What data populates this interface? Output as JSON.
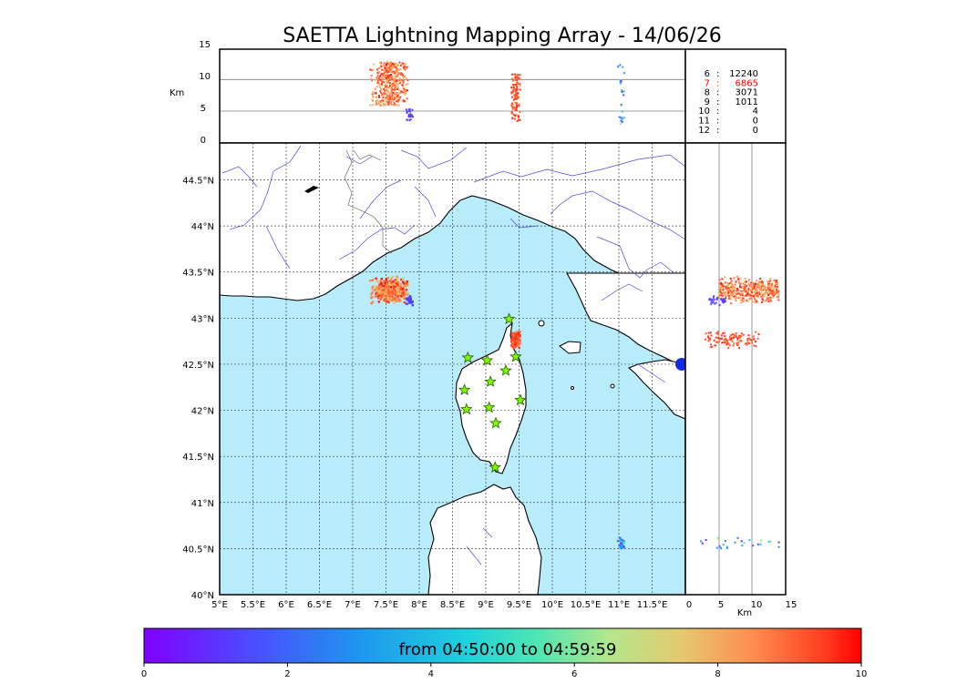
{
  "chart_data": {
    "type": "scatter",
    "title": "SAETTA Lightning Mapping Array - 14/06/26",
    "colors": {
      "land": "#ffffff",
      "sea": "#b8ecfb",
      "rivers": "#3a3aff",
      "coast": "#000000",
      "stations": "#7cfc00"
    },
    "map": {
      "lon_range": [
        5,
        12
      ],
      "lat_range": [
        40,
        44.9
      ],
      "x_ticks": [
        "5°E",
        "5.5°E",
        "6°E",
        "6.5°E",
        "7°E",
        "7.5°E",
        "8°E",
        "8.5°E",
        "9°E",
        "9.5°E",
        "10°E",
        "10.5°E",
        "11°E",
        "11.5°E"
      ],
      "y_ticks": [
        "40°N",
        "40.5°N",
        "41°N",
        "41.5°N",
        "42°N",
        "42.5°N",
        "43°N",
        "43.5°N",
        "44°N",
        "44.5°N"
      ],
      "grid": true
    },
    "top_panel": {
      "ylabel": "Km",
      "y_ticks": [
        "0",
        "5",
        "10",
        "15"
      ],
      "ylim": [
        0,
        15
      ]
    },
    "right_panel": {
      "xlabel": "Km",
      "x_ticks": [
        "0",
        "5",
        "10",
        "15"
      ],
      "xlim": [
        0,
        15
      ]
    },
    "station_counts": [
      {
        "stations": "6",
        "count": "12240",
        "color": "#000000"
      },
      {
        "stations": "7",
        "count": "6865",
        "color": "#ff0000"
      },
      {
        "stations": "8",
        "count": "3071",
        "color": "#000000"
      },
      {
        "stations": "9",
        "count": "1011",
        "color": "#000000"
      },
      {
        "stations": "10",
        "count": "4",
        "color": "#000000"
      },
      {
        "stations": "11",
        "count": "0",
        "color": "#000000"
      },
      {
        "stations": "12",
        "count": "0",
        "color": "#000000"
      }
    ],
    "stations": [
      {
        "lon": 9.35,
        "lat": 42.99
      },
      {
        "lon": 8.73,
        "lat": 42.57
      },
      {
        "lon": 9.02,
        "lat": 42.54
      },
      {
        "lon": 9.45,
        "lat": 42.58
      },
      {
        "lon": 9.3,
        "lat": 42.43
      },
      {
        "lon": 9.07,
        "lat": 42.31
      },
      {
        "lon": 8.68,
        "lat": 42.22
      },
      {
        "lon": 9.52,
        "lat": 42.11
      },
      {
        "lon": 8.71,
        "lat": 42.01
      },
      {
        "lon": 9.05,
        "lat": 42.03
      },
      {
        "lon": 9.15,
        "lat": 41.86
      },
      {
        "lon": 9.14,
        "lat": 41.38
      }
    ],
    "clusters": [
      {
        "lon": 7.55,
        "lat": 43.3,
        "spread_lon": 0.15,
        "spread_lat": 0.08,
        "alt": [
          6,
          13
        ],
        "x_km": [
          5,
          14
        ],
        "t": [
          7.6,
          9.8
        ],
        "n": 420
      },
      {
        "lon": 7.86,
        "lat": 43.19,
        "spread_lon": 0.03,
        "spread_lat": 0.03,
        "alt": [
          3.5,
          5.5
        ],
        "x_km": [
          3.5,
          6
        ],
        "t": [
          1.0,
          1.6
        ],
        "n": 25
      },
      {
        "lon": 9.45,
        "lat": 42.77,
        "spread_lon": 0.04,
        "spread_lat": 0.05,
        "alt": [
          3.5,
          11
        ],
        "x_km": [
          3,
          11
        ],
        "t": [
          8.8,
          9.7
        ],
        "n": 110
      },
      {
        "lon": 11.03,
        "lat": 40.55,
        "spread_lon": 0.03,
        "spread_lat": 0.05,
        "alt": [
          3,
          12.5
        ],
        "x_km": [
          2,
          14
        ],
        "t": [
          1.0,
          6.5
        ],
        "n": 25
      }
    ],
    "colorbar": {
      "label": "from 04:50:00 to 04:59:59",
      "range": [
        0,
        10
      ],
      "ticks": [
        "0",
        "2",
        "4",
        "6",
        "8",
        "10"
      ]
    }
  }
}
